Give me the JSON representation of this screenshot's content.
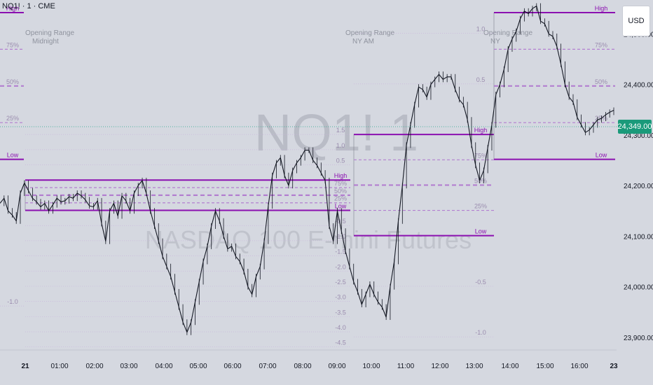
{
  "header": {
    "symbol": "NQ1! · 1 · CME",
    "currency": "USD"
  },
  "watermark": {
    "ticker": "NQ1! 1",
    "name": "NASDAQ 100 E-mini Futures"
  },
  "current_price": {
    "label": "24,349.00",
    "value": 24349
  },
  "colors": {
    "range": "#8b10b0",
    "level": "#b37fd0",
    "grid_line": "#c9b5dc",
    "candle": "#131722",
    "price_line": "#22a588",
    "text": "#8a8e99",
    "price_tag": "#1a9a7a"
  },
  "chart_data": {
    "type": "line",
    "series": [
      {
        "values": [
          24165,
          24175,
          24150,
          24142,
          24130,
          24185,
          24205,
          24190,
          24175,
          24168,
          24158,
          24165,
          24150,
          24162,
          24175,
          24168,
          24170,
          24178,
          24175,
          24185,
          24180,
          24172,
          24160,
          24158,
          24170,
          24125,
          24090,
          24150,
          24165,
          24140,
          24180,
          24170,
          24150,
          24185,
          24200,
          24210,
          24185,
          24150,
          24120,
          24090,
          24060,
          24040,
          24020,
          23990,
          23960,
          23930,
          23910,
          23930,
          23970,
          24010,
          24050,
          24080,
          24120,
          24150,
          24130,
          24100,
          24075,
          24080,
          24060,
          24050,
          24030,
          24000,
          23985,
          24020,
          24040,
          24090,
          24160,
          24220,
          24245,
          24255,
          24220,
          24200,
          24230,
          24245,
          24255,
          24270,
          24270,
          24250,
          24240,
          24225,
          24210,
          24120,
          24090,
          24150,
          24110,
          24070,
          24040,
          24010,
          23990,
          23965,
          23985,
          24005,
          23985,
          23970,
          23960,
          23940,
          24000,
          24050,
          24130,
          24200,
          24280,
          24320,
          24360,
          24395,
          24390,
          24375,
          24400,
          24410,
          24420,
          24410,
          24415,
          24415,
          24390,
          24370,
          24360,
          24330,
          24280,
          24240,
          24210,
          24230,
          24275,
          24320,
          24380,
          24400,
          24430,
          24470,
          24490,
          24505,
          24530,
          24545,
          24540,
          24550,
          24555,
          24525,
          24520,
          24500,
          24495,
          24475,
          24440,
          24400,
          24375,
          24365,
          24335,
          24320,
          24305,
          24310,
          24320,
          24330,
          24333,
          24340,
          24345,
          24349
        ]
      }
    ],
    "x_ticks": [
      "21",
      "01:00",
      "02:00",
      "03:00",
      "04:00",
      "05:00",
      "06:00",
      "07:00",
      "08:00",
      "09:00",
      "10:00",
      "11:00",
      "12:00",
      "13:00",
      "14:00",
      "15:00",
      "16:00",
      "23"
    ],
    "y_ticks": [
      "24,500.00",
      "24,400.00",
      "24,300.00",
      "24,200.00",
      "24,100.00",
      "24,000.00",
      "23,900.00"
    ],
    "ylim": [
      23875,
      24560
    ],
    "ranges": [
      {
        "title": "Opening Range",
        "subtitle": "Midnight",
        "high": 24211,
        "low": 24151,
        "fib": [
          "1.5",
          "1.0",
          "0.5",
          "High",
          "75%",
          "50%",
          "25%",
          "Low",
          "-0.5",
          "-1.0",
          "-1.5",
          "-2.0",
          "-2.5",
          "-3.0",
          "-3.5",
          "-4.0",
          "-4.5"
        ]
      },
      {
        "title": "Opening Range",
        "subtitle": "NY AM",
        "high": 24301,
        "low": 24101,
        "fib": [
          "1.0",
          "0.5",
          "High",
          "75%",
          "50%",
          "25%",
          "Low",
          "-0.5",
          "-1.0"
        ]
      },
      {
        "title": "Opening Range",
        "subtitle": "NY",
        "high": 24542,
        "low": 24252,
        "fib": [
          "High",
          "75%",
          "50%",
          "25%",
          "Low"
        ]
      },
      {
        "high": 24542,
        "low": 24252,
        "fib": [
          "High",
          "75%",
          "50%",
          "25%",
          "Low",
          "-1.0"
        ]
      }
    ]
  }
}
